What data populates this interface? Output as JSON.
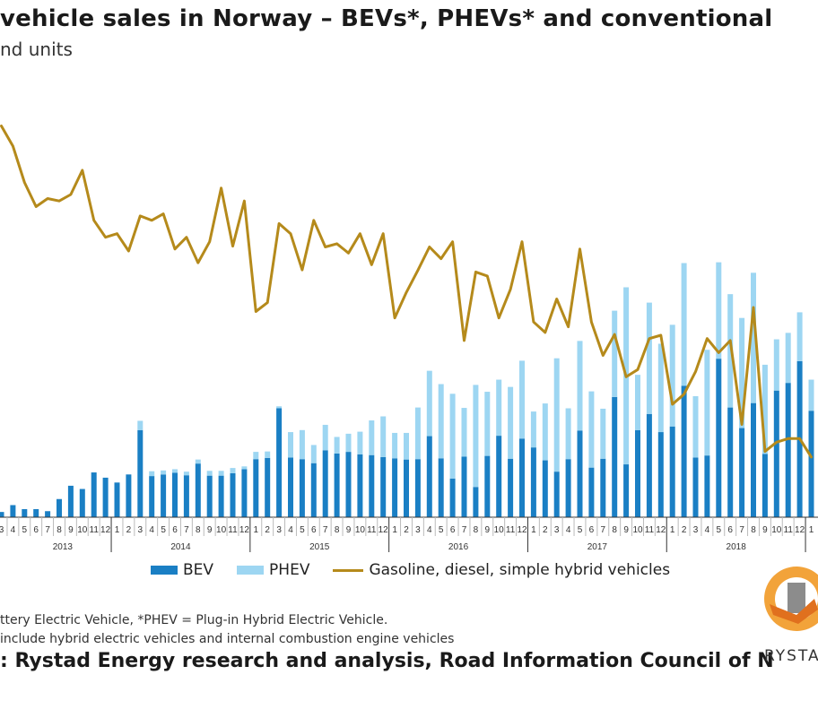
{
  "header": {
    "title": "vehicle sales in Norway – BEVs*, PHEVs* and conventional",
    "subtitle": "nd units"
  },
  "legend": {
    "bev": "BEV",
    "phev": "PHEV",
    "conventional": "Gasoline, diesel, simple hybrid vehicles"
  },
  "footnotes": {
    "line1": "ttery Electric Vehicle, *PHEV = Plug-in Hybrid Electric Vehicle.",
    "line2": " include hybrid electric vehicles and internal combustion engine vehicles"
  },
  "source": ": Rystad Energy research and analysis, Road Information Council of N",
  "logo": {
    "text": "RYSTAD"
  },
  "colors": {
    "bev": "#1a7fc4",
    "phev": "#9dd6f2",
    "conventional": "#b58a1b",
    "axis": "#333333"
  },
  "chart_data": {
    "type": "bar",
    "stacked": true,
    "x_axis": {
      "months": [
        3,
        4,
        5,
        6,
        7,
        8,
        9,
        10,
        11,
        12,
        1,
        2,
        3,
        4,
        5,
        6,
        7,
        8,
        9,
        10,
        11,
        12,
        1,
        2,
        3,
        4,
        5,
        6,
        7,
        8,
        9,
        10,
        11,
        12,
        1,
        2,
        3,
        4,
        5,
        6,
        7,
        8,
        9,
        10,
        11,
        12,
        1,
        2,
        3,
        4,
        5,
        6,
        7,
        8,
        9,
        10,
        11,
        12,
        1,
        2,
        3,
        4,
        5,
        6,
        7,
        8,
        9,
        10,
        11,
        12,
        1
      ],
      "years": [
        "2013",
        "2014",
        "2015",
        "2016",
        "2017",
        "2018"
      ]
    },
    "ylim": [
      0,
      100
    ],
    "series": [
      {
        "name": "BEV",
        "type": "bar",
        "values": [
          1.3,
          3,
          2,
          2,
          1.5,
          4.5,
          7.8,
          7,
          11.1,
          9.8,
          8.6,
          10.6,
          21.6,
          10.2,
          10.6,
          11,
          10.4,
          13.3,
          10.3,
          10.3,
          10.9,
          11.9,
          14.4,
          14.7,
          27,
          14.8,
          14.4,
          13.4,
          16.6,
          15.8,
          16.2,
          15.6,
          15.4,
          14.9,
          14.6,
          14.3,
          14.4,
          20.1,
          14.6,
          9.6,
          15,
          7.5,
          15.2,
          20.2,
          14.5,
          19.5,
          17.3,
          14.1,
          11.3,
          14.4,
          21.5,
          12.3,
          14.5,
          29.8,
          13.1,
          21.6,
          25.6,
          21.1,
          22.5,
          32.6,
          14.8,
          15.3,
          39.3,
          27.2,
          22.1,
          28.3,
          15.7,
          31.4,
          33.3,
          38.7,
          26.4
        ]
      },
      {
        "name": "PHEV",
        "type": "bar",
        "values": [
          0,
          0,
          0,
          0,
          0,
          0,
          0,
          0,
          0,
          0,
          0,
          0,
          2.3,
          1.2,
          1,
          0.9,
          0.9,
          1,
          1.2,
          1.2,
          1.3,
          0.7,
          1.8,
          1.6,
          0.5,
          6.3,
          7.2,
          4.5,
          6.3,
          4.1,
          4.5,
          5.6,
          8.6,
          10.1,
          6.3,
          6.6,
          12.8,
          16.2,
          18.4,
          21,
          12.1,
          25.3,
          15.9,
          13.9,
          17.8,
          19.3,
          8.9,
          14.1,
          28.1,
          12.6,
          22.2,
          18.9,
          12.4,
          21.4,
          43.9,
          13.7,
          27.6,
          21.9,
          25.2,
          30.4,
          15.2,
          26.2,
          23.9,
          28.1,
          27.3,
          32.3,
          22.1,
          12.7,
          12.4,
          12.1,
          7.7
        ]
      },
      {
        "name": "Gasoline, diesel, simple hybrid vehicles",
        "type": "line",
        "values": [
          97,
          92,
          83,
          77,
          79,
          78.4,
          80,
          86,
          73.6,
          69.4,
          70.3,
          66,
          74.7,
          73.6,
          75.2,
          66.5,
          69.4,
          63.1,
          68.3,
          81.6,
          67.2,
          78.4,
          51,
          53.2,
          72.8,
          70.3,
          61.3,
          73.6,
          67,
          67.8,
          65.5,
          70.3,
          62.6,
          70.3,
          49.4,
          55.7,
          61.2,
          67,
          64.1,
          68.3,
          43.8,
          60.8,
          59.8,
          49.4,
          56.5,
          68.3,
          48.4,
          45.8,
          54.1,
          47.2,
          66.5,
          48.4,
          40.1,
          45.3,
          34.8,
          36.6,
          44.3,
          45.1,
          28,
          30.5,
          36.1,
          44.3,
          40.8,
          43.8,
          23,
          52,
          16.3,
          18.6,
          19.5,
          19.5,
          14.9
        ]
      }
    ]
  }
}
